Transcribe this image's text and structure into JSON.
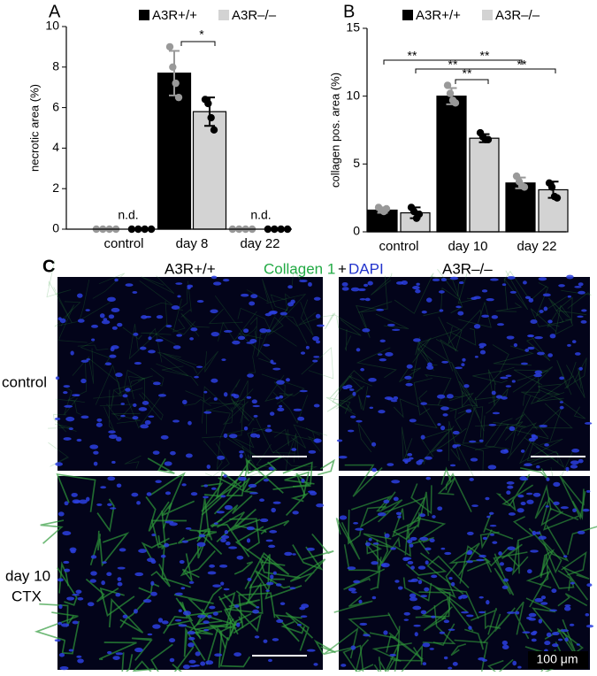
{
  "chart_data": [
    {
      "type": "bar",
      "panel": "A",
      "ylabel": "necrotic area (%)",
      "categories": [
        "control",
        "day 8",
        "day 22"
      ],
      "ylim": [
        0,
        10
      ],
      "yticks": [
        0,
        2,
        4,
        6,
        8,
        10
      ],
      "series": [
        {
          "name": "A3R+/+",
          "color": "#000000",
          "point_color": "#999999",
          "values": [
            0,
            7.7,
            0
          ],
          "errors": [
            0,
            1.1,
            0
          ],
          "points": [
            [
              0,
              0,
              0,
              0
            ],
            [
              9.0,
              8.0,
              7.2,
              6.5
            ],
            [
              0,
              0,
              0,
              0
            ]
          ]
        },
        {
          "name": "A3R–/–",
          "color": "#d3d3d3",
          "point_color": "#000000",
          "values": [
            0,
            5.8,
            0
          ],
          "errors": [
            0,
            0.7,
            0
          ],
          "points": [
            [
              0,
              0,
              0,
              0
            ],
            [
              6.4,
              6.2,
              5.5,
              4.9
            ],
            [
              0,
              0,
              0,
              0
            ]
          ]
        }
      ],
      "annotations": [
        "n.d.",
        "*",
        "n.d."
      ]
    },
    {
      "type": "bar",
      "panel": "B",
      "ylabel": "collagen pos. area (%)",
      "categories": [
        "control",
        "day 10",
        "day 22"
      ],
      "ylim": [
        0,
        15
      ],
      "yticks": [
        0,
        5,
        10,
        15
      ],
      "series": [
        {
          "name": "A3R+/+",
          "color": "#000000",
          "point_color": "#999999",
          "values": [
            1.6,
            10.0,
            3.6
          ],
          "errors": [
            0.2,
            0.6,
            0.4
          ],
          "points": [
            [
              1.8,
              1.6,
              1.5,
              1.7
            ],
            [
              10.8,
              10.2,
              9.7,
              9.5
            ],
            [
              4.1,
              3.7,
              3.4,
              3.3
            ]
          ]
        },
        {
          "name": "A3R–/–",
          "color": "#d3d3d3",
          "point_color": "#000000",
          "values": [
            1.4,
            6.9,
            3.1
          ],
          "errors": [
            0.4,
            0.3,
            0.6
          ],
          "points": [
            [
              1.8,
              1.5,
              1.0,
              1.3
            ],
            [
              7.3,
              7.0,
              6.8,
              6.8
            ],
            [
              3.6,
              3.3,
              2.6,
              2.5
            ]
          ]
        }
      ],
      "annotations": [
        "**",
        "**",
        "**",
        "**",
        "**"
      ]
    }
  ],
  "panel_c": {
    "label": "C",
    "col_left": "A3R+/+",
    "col_right": "A3R–/–",
    "stain_1": "Collagen 1",
    "stain_join": "+",
    "stain_2": "DAPI",
    "row_top": "control",
    "row_bottom_1": "day 10",
    "row_bottom_2": "CTX",
    "scale": "100 μm"
  }
}
